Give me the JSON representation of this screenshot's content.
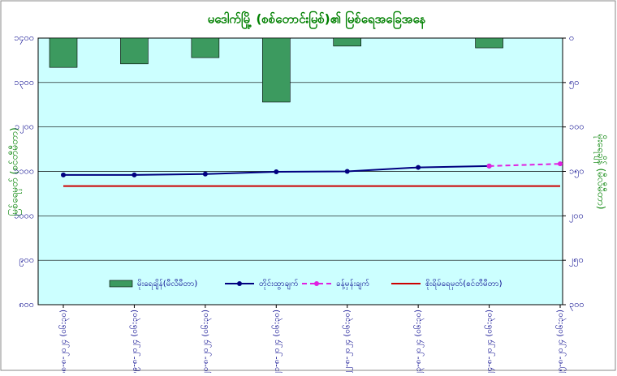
{
  "chart_data": {
    "type": "bar-line",
    "title": "မဒေါက်မြို့ (စစ်တောင်းမြစ်)၏ မြစ်ရေအခြေအနေ",
    "y_label": "မြစ်ရေမှတ် (စင်တီမီတာ)",
    "y2_label": "မိုးရေချိန် (မီလီမီတာ)",
    "categories": [
      "၁၈-၈-၂၀၂၄ (၀၆:၃၀)",
      "၁၉-၈-၂၀၂၄ (၀၆:၃၀)",
      "၂၀-၈-၂၀၂၄ (၀၆:၃၀)",
      "၂၁-၈-၂၀၂၄ (၀၆:၃၀)",
      "၂၂-၈-၂၀၂၄ (၀၆:၃၀)",
      "၂၃-၈-၂၀၂၄ (၀၆:၃၀)",
      "၂၄-၈-၂၀၂၄ (၀၆:၃၀)",
      "၂၅-၈-၂၀၂၄ (၀၆:၃၀)"
    ],
    "ylim": [
      800,
      1400
    ],
    "yticks": [
      {
        "value": 800,
        "label": "၈၀၀"
      },
      {
        "value": 900,
        "label": "၉၀၀"
      },
      {
        "value": 1000,
        "label": "၁၀၀၀"
      },
      {
        "value": 1100,
        "label": "၁၁၀၀"
      },
      {
        "value": 1200,
        "label": "၁၂၀၀"
      },
      {
        "value": 1300,
        "label": "၁၃၀၀"
      },
      {
        "value": 1400,
        "label": "၁၄၀၀"
      }
    ],
    "y2lim": [
      0,
      300
    ],
    "y2_inverted": true,
    "y2ticks": [
      {
        "value": 0,
        "label": "၀"
      },
      {
        "value": 50,
        "label": "၅၀"
      },
      {
        "value": 100,
        "label": "၁၀၀"
      },
      {
        "value": 150,
        "label": "၁၅၀"
      },
      {
        "value": 200,
        "label": "၂၀၀"
      },
      {
        "value": 250,
        "label": "၂၅၀"
      },
      {
        "value": 300,
        "label": "၃၀၀"
      }
    ],
    "grid": true,
    "series": [
      {
        "name": "မိုးရေချိန်(မီလီမီတာ)",
        "kind": "bar",
        "axis": "y2",
        "color": "#3c9a5f",
        "values": [
          33,
          29,
          22,
          72,
          9,
          0,
          11,
          null
        ]
      },
      {
        "name": "တိုင်းထွာချက်",
        "kind": "line",
        "color": "#000080",
        "dash": false,
        "marker": true,
        "values": [
          1092,
          1092,
          1094,
          1099,
          1100,
          1109,
          1112,
          null
        ]
      },
      {
        "name": "ခန့်မှန်းချက်",
        "kind": "line",
        "color": "#e020e0",
        "dash": true,
        "marker": true,
        "values": [
          null,
          null,
          null,
          null,
          null,
          null,
          1112,
          1117
        ]
      },
      {
        "name": "စိုးရိမ်ရေမှတ်(စင်တီမီတာ)",
        "kind": "line",
        "color": "#cc0000",
        "dash": false,
        "marker": false,
        "values": [
          1067,
          1067,
          1067,
          1067,
          1067,
          1067,
          1067,
          1067
        ]
      }
    ]
  }
}
